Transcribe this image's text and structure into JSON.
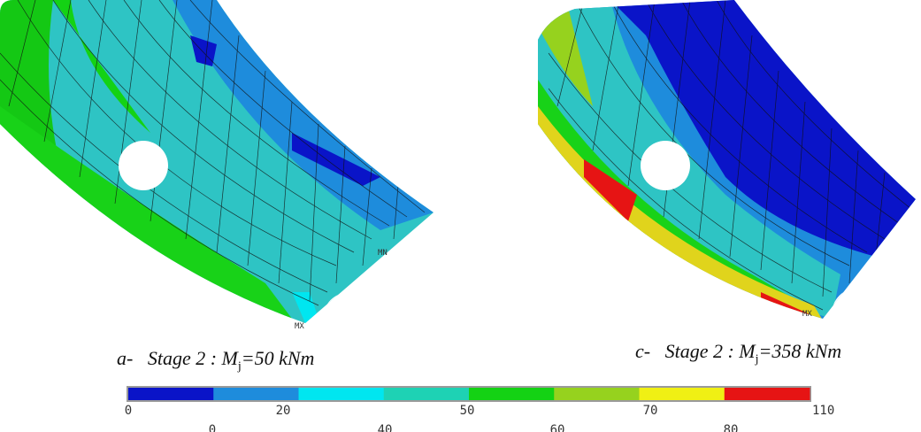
{
  "plot_a": {
    "caption_prefix": "a-",
    "caption_stage": "Stage 2 : M",
    "caption_sub": "j",
    "caption_value": "=50 kNm",
    "min_label": "MN",
    "max_label": "MX"
  },
  "plot_c": {
    "caption_prefix": "c-",
    "caption_stage": "Stage 2 : M",
    "caption_sub": "j",
    "caption_value": "=358 kNm",
    "max_label": "MX"
  },
  "legend": {
    "colors": [
      "#0a14c8",
      "#1e8cdc",
      "#00e6f0",
      "#1ed2b4",
      "#14d214",
      "#96d21e",
      "#f0f014",
      "#e61414"
    ],
    "top_ticks": [
      "0",
      "20",
      "50",
      "70",
      "110"
    ],
    "top_tick_value": [
      0,
      20,
      50,
      70,
      110
    ],
    "cut_ticks": [
      "0",
      "40",
      "60",
      "80"
    ]
  }
}
